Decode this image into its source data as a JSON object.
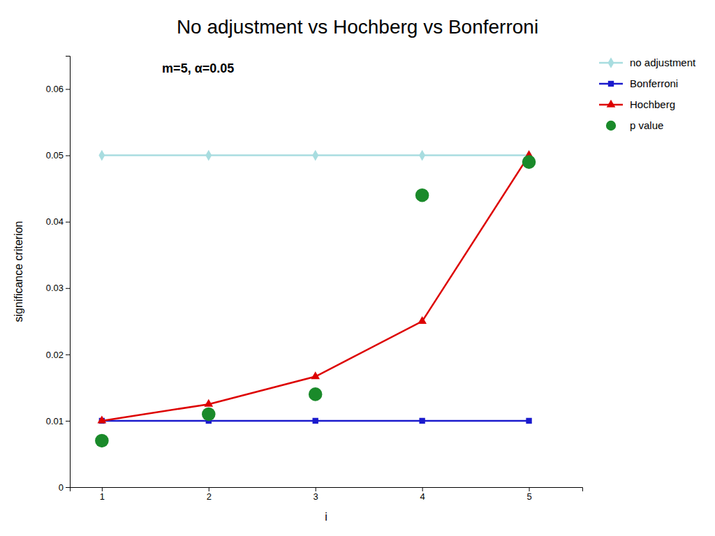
{
  "chart_data": {
    "type": "line",
    "title": "No adjustment vs Hochberg vs Bonferroni",
    "annotation": "m=5, α=0.05",
    "xlabel": "i",
    "ylabel": "significance criterion",
    "x": [
      1,
      2,
      3,
      4,
      5
    ],
    "xlim": [
      0.7,
      5.5
    ],
    "xticks": [
      1,
      2,
      3,
      4,
      5
    ],
    "ylim": [
      0,
      0.065
    ],
    "yticks": [
      0,
      0.01,
      0.02,
      0.03,
      0.04,
      0.05,
      0.06
    ],
    "grid": false,
    "legend": "right",
    "series": [
      {
        "name": "no adjustment",
        "type": "line",
        "marker": "diamond",
        "color": "#a8dde0",
        "values": [
          0.05,
          0.05,
          0.05,
          0.05,
          0.05
        ]
      },
      {
        "name": "Bonferroni",
        "type": "line",
        "marker": "square",
        "color": "#1a1acd",
        "values": [
          0.01,
          0.01,
          0.01,
          0.01,
          0.01
        ]
      },
      {
        "name": "Hochberg",
        "type": "line",
        "marker": "triangle",
        "color": "#dd0000",
        "values": [
          0.01,
          0.0125,
          0.01667,
          0.025,
          0.05
        ]
      },
      {
        "name": "p value",
        "type": "scatter",
        "marker": "circle",
        "color": "#1a8a2a",
        "values": [
          0.007,
          0.011,
          0.014,
          0.044,
          0.049
        ]
      }
    ]
  }
}
